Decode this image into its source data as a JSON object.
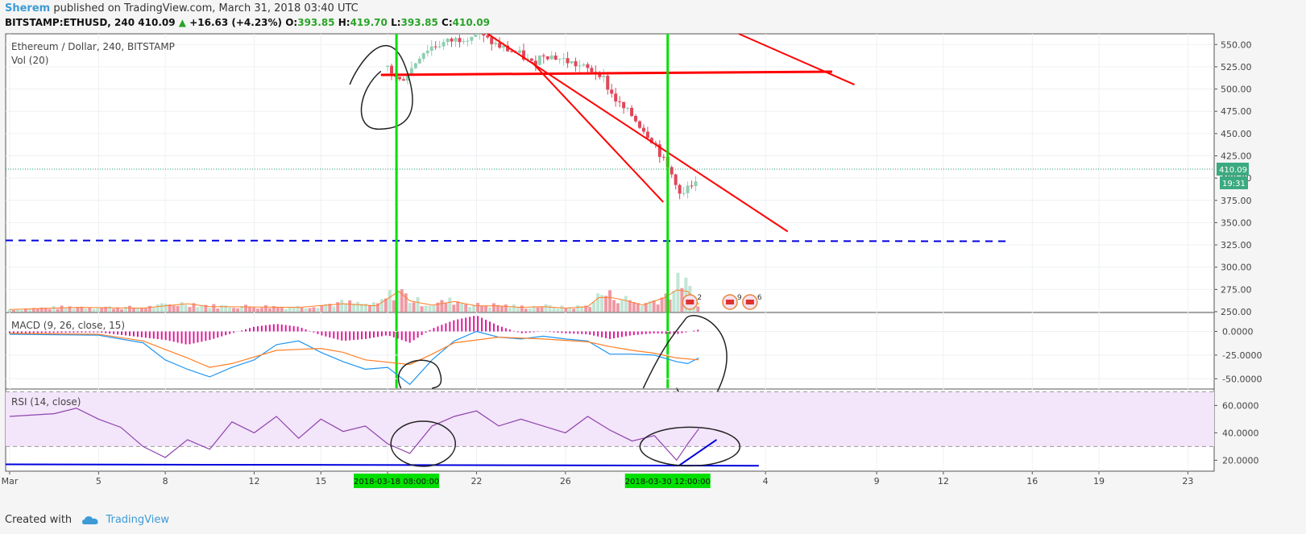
{
  "header": {
    "author": "Sherem",
    "published_text": "published on TradingView.com, March 31, 2018 03:40 UTC",
    "symbol": "BITSTAMP:ETHUSD, 240",
    "last": "410.09",
    "up_arrow": "▲",
    "change": "+16.63 (+4.23%)",
    "open_label": "O:",
    "open": "393.85",
    "high_label": "H:",
    "high": "419.70",
    "low_label": "L:",
    "low": "393.85",
    "close_label": "C:",
    "close": "410.09"
  },
  "footer": {
    "created_with": "Created with",
    "brand": "TradingView",
    "logo_icon": "cloud-icon"
  },
  "colors": {
    "bull": "#8fcfb1",
    "bear": "#e0475a",
    "trendline": "#ff0000",
    "marker": "#00e000",
    "support": "#0000dd",
    "macd_line": "#2196f3",
    "signal_line": "#ff7f27",
    "rsi_line": "#8e44ad",
    "rsi_band": "#f3e5fa"
  },
  "chart_data": [
    {
      "type": "candlestick",
      "title": "Ethereum / Dollar, 240, BITSTAMP",
      "volume_label": "Vol (20)",
      "y_ticks": [
        "550.00",
        "525.00",
        "500.00",
        "475.00",
        "450.00",
        "425.00",
        "400.00",
        "375.00",
        "350.00",
        "325.00",
        "300.00",
        "275.00",
        "250.00"
      ],
      "ylim": [
        250,
        562
      ],
      "last_price_label": "410.09",
      "countdown_label": "19:31",
      "support_level": 330,
      "resistance_level": 515,
      "event_badges": [
        "2",
        "9",
        "6"
      ],
      "price_path": [
        [
          0,
          560
        ],
        [
          10,
          552
        ],
        [
          17,
          525
        ],
        [
          17.5,
          508
        ],
        [
          18,
          520
        ],
        [
          18.5,
          540
        ],
        [
          19,
          548
        ],
        [
          20,
          555
        ],
        [
          21,
          562
        ],
        [
          22,
          548
        ],
        [
          23,
          538
        ],
        [
          23.5,
          528
        ],
        [
          24,
          540
        ],
        [
          25,
          532
        ],
        [
          26,
          522
        ],
        [
          26.6,
          518
        ],
        [
          27,
          497
        ],
        [
          27.5,
          480
        ],
        [
          28,
          470
        ],
        [
          28.5,
          455
        ],
        [
          29,
          440
        ],
        [
          29.5,
          415
        ],
        [
          30,
          395
        ],
        [
          30.2,
          375
        ],
        [
          30.5,
          390
        ],
        [
          30.8,
          385
        ],
        [
          31,
          410
        ]
      ],
      "volume_profile": [
        [
          0,
          3
        ],
        [
          3,
          6
        ],
        [
          6,
          5
        ],
        [
          8,
          11
        ],
        [
          9,
          7
        ],
        [
          13,
          6
        ],
        [
          15,
          11
        ],
        [
          16.5,
          8
        ],
        [
          17,
          18
        ],
        [
          17.5,
          28
        ],
        [
          18,
          15
        ],
        [
          19,
          9
        ],
        [
          20,
          14
        ],
        [
          21,
          8
        ],
        [
          22,
          8
        ],
        [
          23,
          6
        ],
        [
          24,
          7
        ],
        [
          25,
          5
        ],
        [
          26,
          7
        ],
        [
          26.6,
          22
        ],
        [
          27.5,
          17
        ],
        [
          28.5,
          9
        ],
        [
          29.5,
          20
        ],
        [
          30,
          30
        ],
        [
          30.2,
          44
        ],
        [
          30.5,
          28
        ],
        [
          31,
          10
        ]
      ]
    },
    {
      "type": "line",
      "title": "MACD (9, 26, close, 15)",
      "y_ticks": [
        "0.0000",
        "-25.0000",
        "-50.0000"
      ],
      "ylim": [
        -60,
        20
      ],
      "series": [
        {
          "name": "MACD",
          "points": [
            [
              0,
              -3
            ],
            [
              4,
              -4
            ],
            [
              6,
              -12
            ],
            [
              7,
              -30
            ],
            [
              8,
              -40
            ],
            [
              9,
              -48
            ],
            [
              10,
              -38
            ],
            [
              11,
              -30
            ],
            [
              12,
              -14
            ],
            [
              13,
              -10
            ],
            [
              14,
              -22
            ],
            [
              15,
              -32
            ],
            [
              16,
              -40
            ],
            [
              17,
              -38
            ],
            [
              18,
              -56
            ],
            [
              19,
              -30
            ],
            [
              20,
              -10
            ],
            [
              21,
              0
            ],
            [
              22,
              -6
            ],
            [
              23,
              -8
            ],
            [
              24,
              -5
            ],
            [
              25,
              -8
            ],
            [
              26,
              -10
            ],
            [
              27,
              -24
            ],
            [
              28,
              -24
            ],
            [
              29,
              -25
            ],
            [
              30,
              -32
            ],
            [
              30.5,
              -34
            ],
            [
              31,
              -28
            ]
          ]
        },
        {
          "name": "Signal",
          "points": [
            [
              0,
              -2
            ],
            [
              4,
              -3
            ],
            [
              6,
              -10
            ],
            [
              8,
              -28
            ],
            [
              9,
              -38
            ],
            [
              10,
              -34
            ],
            [
              12,
              -20
            ],
            [
              14,
              -18
            ],
            [
              15,
              -22
            ],
            [
              16,
              -30
            ],
            [
              18,
              -35
            ],
            [
              19,
              -24
            ],
            [
              20,
              -12
            ],
            [
              22,
              -6
            ],
            [
              24,
              -8
            ],
            [
              26,
              -11
            ],
            [
              27,
              -16
            ],
            [
              28,
              -20
            ],
            [
              29,
              -23
            ],
            [
              30,
              -28
            ],
            [
              31,
              -30
            ]
          ]
        },
        {
          "name": "Histogram",
          "points": [
            [
              0,
              -2
            ],
            [
              4,
              -1
            ],
            [
              7,
              -9
            ],
            [
              8,
              -14
            ],
            [
              9,
              -9
            ],
            [
              11,
              5
            ],
            [
              12,
              8
            ],
            [
              13,
              5
            ],
            [
              14,
              -4
            ],
            [
              15,
              -10
            ],
            [
              16,
              -8
            ],
            [
              17,
              -4
            ],
            [
              18,
              -12
            ],
            [
              19,
              3
            ],
            [
              20,
              12
            ],
            [
              21,
              17
            ],
            [
              22,
              6
            ],
            [
              23,
              -2
            ],
            [
              24,
              0
            ],
            [
              25,
              -2
            ],
            [
              26,
              -3
            ],
            [
              27,
              -8
            ],
            [
              28,
              -4
            ],
            [
              29,
              -2
            ],
            [
              30,
              -3
            ],
            [
              31,
              2
            ]
          ]
        }
      ]
    },
    {
      "type": "line",
      "title": "RSI (14, close)",
      "y_ticks": [
        "60.0000",
        "40.0000",
        "20.0000"
      ],
      "ylim": [
        12,
        72
      ],
      "bands": [
        70,
        30
      ],
      "series": [
        {
          "name": "RSI",
          "points": [
            [
              0,
              52
            ],
            [
              2,
              54
            ],
            [
              3,
              58
            ],
            [
              4,
              50
            ],
            [
              5,
              44
            ],
            [
              6,
              30
            ],
            [
              7,
              22
            ],
            [
              8,
              35
            ],
            [
              9,
              28
            ],
            [
              10,
              48
            ],
            [
              11,
              40
            ],
            [
              12,
              52
            ],
            [
              13,
              36
            ],
            [
              14,
              50
            ],
            [
              15,
              41
            ],
            [
              16,
              45
            ],
            [
              17,
              32
            ],
            [
              18,
              25
            ],
            [
              19,
              45
            ],
            [
              20,
              52
            ],
            [
              21,
              56
            ],
            [
              22,
              45
            ],
            [
              23,
              50
            ],
            [
              24,
              45
            ],
            [
              25,
              40
            ],
            [
              26,
              52
            ],
            [
              27,
              42
            ],
            [
              28,
              34
            ],
            [
              29,
              38
            ],
            [
              30,
              20
            ],
            [
              30.5,
              32
            ],
            [
              31,
              43
            ]
          ]
        }
      ]
    }
  ],
  "x_axis": {
    "ticks": [
      {
        "i": 0,
        "label": "Mar"
      },
      {
        "i": 4,
        "label": "5"
      },
      {
        "i": 7,
        "label": "8"
      },
      {
        "i": 11,
        "label": "12"
      },
      {
        "i": 14,
        "label": "15"
      },
      {
        "i": 17,
        "label": "18"
      },
      {
        "i": 21,
        "label": "22"
      },
      {
        "i": 25,
        "label": "26"
      },
      {
        "i": 34,
        "label": "4"
      },
      {
        "i": 39,
        "label": "9"
      },
      {
        "i": 42,
        "label": "12"
      },
      {
        "i": 46,
        "label": "16"
      },
      {
        "i": 49,
        "label": "19"
      },
      {
        "i": 53,
        "label": "23"
      }
    ],
    "markers": [
      {
        "i": 17.4,
        "label": "2018-03-18 08:00:00"
      },
      {
        "i": 29.6,
        "label": "2018-03-30 12:00:00"
      }
    ]
  }
}
